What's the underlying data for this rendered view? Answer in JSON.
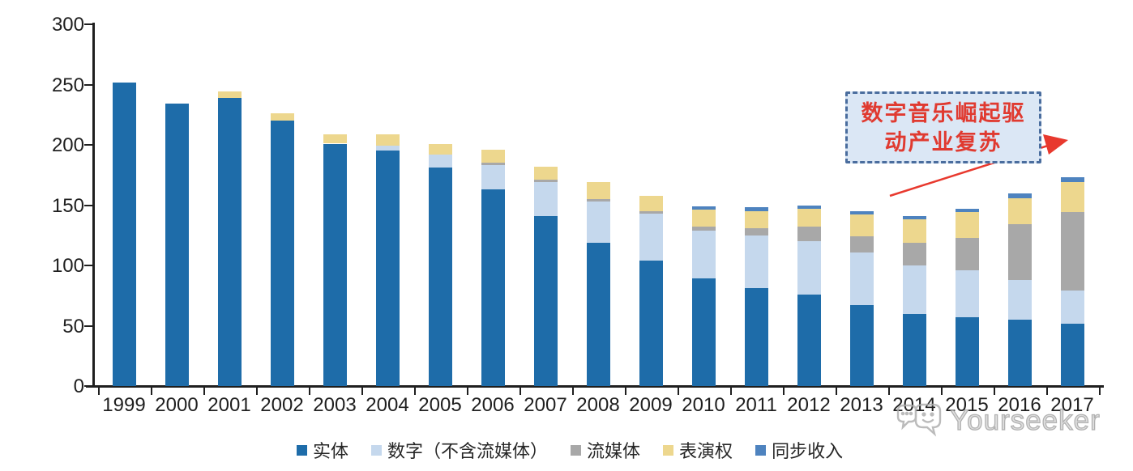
{
  "chart_data": {
    "type": "bar",
    "stacked": true,
    "title": "",
    "categories": [
      "1999",
      "2000",
      "2001",
      "2002",
      "2003",
      "2004",
      "2005",
      "2006",
      "2007",
      "2008",
      "2009",
      "2010",
      "2011",
      "2012",
      "2013",
      "2014",
      "2015",
      "2016",
      "2017"
    ],
    "series": [
      {
        "name": "实体",
        "color": "#1e6ca9",
        "values": [
          252,
          234,
          239,
          220,
          201,
          195,
          181,
          163,
          141,
          119,
          104,
          89,
          81,
          76,
          67,
          60,
          57,
          55,
          52
        ]
      },
      {
        "name": "数字（不含流媒体）",
        "color": "#c5d8ed",
        "values": [
          0,
          0,
          0,
          0,
          0,
          4,
          11,
          20,
          28,
          34,
          39,
          40,
          44,
          44,
          44,
          40,
          39,
          33,
          27
        ]
      },
      {
        "name": "流媒体",
        "color": "#a8a8a8",
        "values": [
          0,
          0,
          0,
          0,
          0,
          0,
          0,
          2,
          2,
          2,
          2,
          3,
          6,
          12,
          13,
          19,
          27,
          46,
          65
        ]
      },
      {
        "name": "表演权",
        "color": "#edd78e",
        "values": [
          0,
          0,
          5,
          6,
          8,
          10,
          9,
          11,
          11,
          14,
          13,
          14,
          14,
          15,
          18,
          19,
          21,
          22,
          25
        ]
      },
      {
        "name": "同步收入",
        "color": "#4e83bf",
        "values": [
          0,
          0,
          0,
          0,
          0,
          0,
          0,
          0,
          0,
          0,
          0,
          3,
          3,
          3,
          3,
          3,
          3,
          4,
          4
        ]
      }
    ],
    "ylim": [
      0,
      300
    ],
    "yticks": [
      0,
      50,
      100,
      150,
      200,
      250,
      300
    ],
    "xlabel": "",
    "ylabel": "",
    "grid": false,
    "legend_position": "bottom"
  },
  "annotation": {
    "lines": [
      "数字音乐崛起驱",
      "动产业复苏"
    ],
    "text_color": "#e03a30",
    "box_fill": "#dbe7f5",
    "box_border_color": "#4a6d9e",
    "arrow_color": "#e8392e"
  },
  "watermark": {
    "text": "Yourseeker",
    "icon": "chat-bubbles-icon",
    "color": "#a9a9a9"
  },
  "axis": {
    "line_color": "#1f1f1f",
    "label_color": "#1f1f1f"
  }
}
